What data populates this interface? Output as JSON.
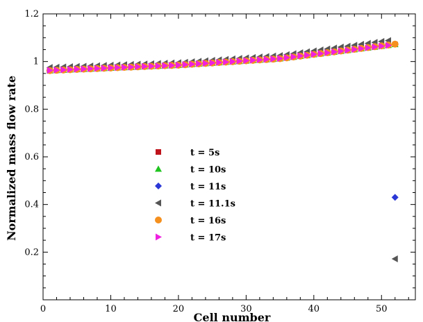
{
  "chart_data": {
    "type": "scatter",
    "title": "",
    "xlabel": "Cell number",
    "ylabel": "Normalized mass flow rate",
    "xlim": [
      0,
      55
    ],
    "ylim": [
      0,
      1.2
    ],
    "x_ticks": [
      0,
      10,
      20,
      30,
      40,
      50
    ],
    "y_ticks": [
      0.2,
      0.4,
      0.6,
      0.8,
      1,
      1.2
    ],
    "x_tick_labels": [
      "0",
      "10",
      "20",
      "30",
      "40",
      "50"
    ],
    "y_tick_labels": [
      "0.2",
      "0.4",
      "0.6",
      "0.8",
      "1",
      "1.2"
    ],
    "grid": false,
    "legend_placement": "center-left",
    "series": [
      {
        "name": "t = 5s",
        "marker": "square",
        "color": "#c0141c",
        "x_start": 1,
        "x_end": 52,
        "y_anchors": [
          [
            1,
            0.962
          ],
          [
            20,
            0.985
          ],
          [
            35,
            1.012
          ],
          [
            52,
            1.072
          ]
        ]
      },
      {
        "name": "t = 10s",
        "marker": "triangle-up",
        "color": "#1fc41f",
        "x_start": 1,
        "x_end": 52,
        "y_anchors": [
          [
            1,
            0.962
          ],
          [
            20,
            0.985
          ],
          [
            35,
            1.012
          ],
          [
            52,
            1.072
          ]
        ]
      },
      {
        "name": "t = 11s",
        "marker": "diamond",
        "color": "#2b38d6",
        "x_start": 1,
        "x_end": 52,
        "y_anchors": [
          [
            1,
            0.963
          ],
          [
            20,
            0.985
          ],
          [
            35,
            1.013
          ],
          [
            51,
            1.07
          ],
          [
            52,
            0.43
          ]
        ]
      },
      {
        "name": "t = 11.1s",
        "marker": "triangle-left",
        "color": "#555555",
        "x_start": 1,
        "x_end": 52,
        "y_anchors": [
          [
            1,
            0.975
          ],
          [
            20,
            0.995
          ],
          [
            35,
            1.025
          ],
          [
            51,
            1.088
          ],
          [
            52,
            0.172
          ]
        ]
      },
      {
        "name": "t = 16s",
        "marker": "circle",
        "color": "#f5901e",
        "x_start": 1,
        "x_end": 52,
        "y_anchors": [
          [
            1,
            0.962
          ],
          [
            20,
            0.985
          ],
          [
            35,
            1.012
          ],
          [
            52,
            1.073
          ]
        ]
      },
      {
        "name": "t = 17s",
        "marker": "triangle-right",
        "color": "#f020e0",
        "x_start": 1,
        "x_end": 51,
        "y_anchors": [
          [
            1,
            0.963
          ],
          [
            20,
            0.985
          ],
          [
            35,
            1.013
          ],
          [
            51,
            1.068
          ]
        ]
      }
    ]
  }
}
